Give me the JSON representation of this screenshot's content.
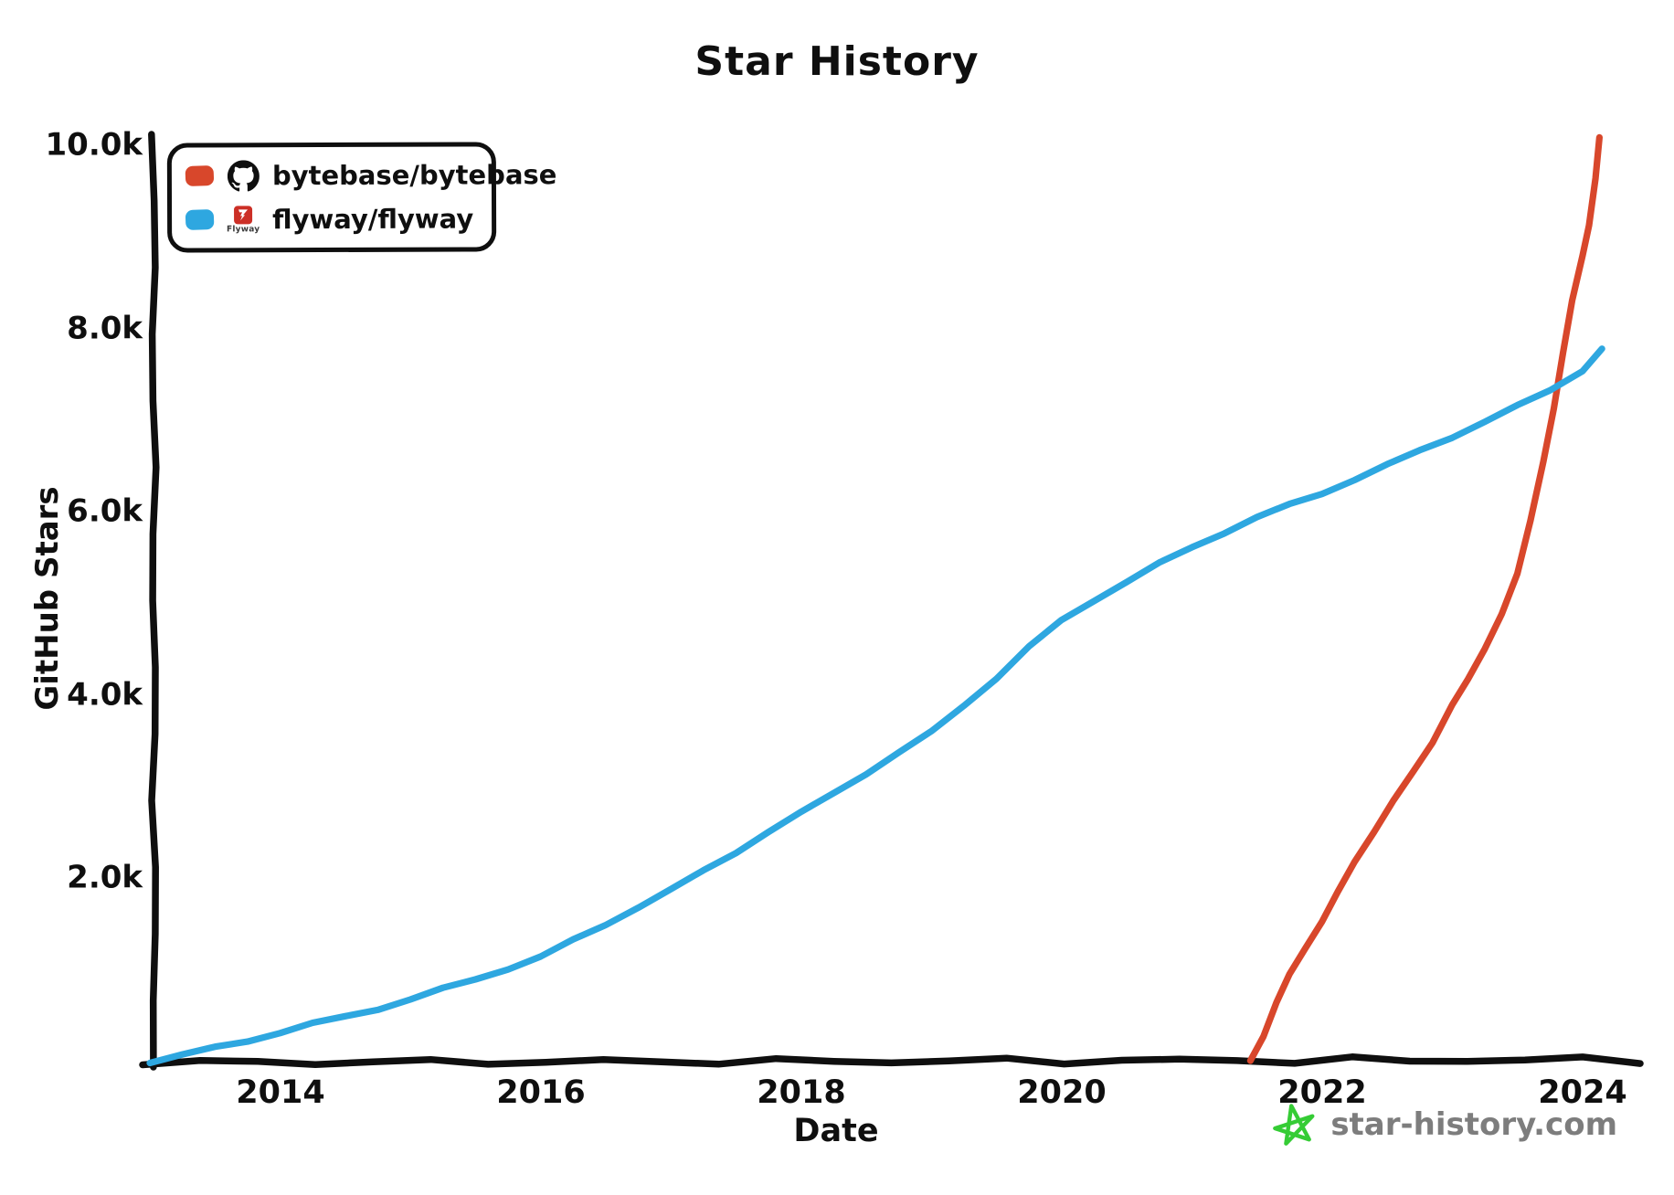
{
  "chart_data": {
    "type": "line",
    "title": "Star History",
    "xlabel": "Date",
    "ylabel": "GitHub Stars",
    "grid": false,
    "legend_position": "top-left",
    "xlim": [
      2013.0,
      2024.45
    ],
    "ylim": [
      0,
      10000
    ],
    "x_ticks": [
      2014,
      2016,
      2018,
      2020,
      2022,
      2024
    ],
    "x_tick_labels": [
      "2014",
      "2016",
      "2018",
      "2020",
      "2022",
      "2024"
    ],
    "y_ticks": [
      2000,
      4000,
      6000,
      8000,
      10000
    ],
    "y_tick_labels": [
      "2.0k",
      "4.0k",
      "6.0k",
      "8.0k",
      "10.0k"
    ],
    "axis_color": "#0f0f0f",
    "series": [
      {
        "name": "bytebase/bytebase",
        "color": "#d8472b",
        "icon": "github-octocat-icon",
        "points": [
          [
            2021.45,
            20
          ],
          [
            2021.55,
            300
          ],
          [
            2021.65,
            650
          ],
          [
            2021.75,
            950
          ],
          [
            2021.87,
            1250
          ],
          [
            2022.0,
            1550
          ],
          [
            2022.12,
            1850
          ],
          [
            2022.25,
            2180
          ],
          [
            2022.4,
            2530
          ],
          [
            2022.55,
            2870
          ],
          [
            2022.7,
            3160
          ],
          [
            2022.85,
            3490
          ],
          [
            2023.0,
            3920
          ],
          [
            2023.12,
            4180
          ],
          [
            2023.25,
            4500
          ],
          [
            2023.38,
            4900
          ],
          [
            2023.5,
            5350
          ],
          [
            2023.6,
            5900
          ],
          [
            2023.7,
            6550
          ],
          [
            2023.78,
            7150
          ],
          [
            2023.85,
            7750
          ],
          [
            2023.92,
            8300
          ],
          [
            2024.0,
            8800
          ],
          [
            2024.05,
            9150
          ],
          [
            2024.1,
            9650
          ],
          [
            2024.13,
            10080
          ]
        ]
      },
      {
        "name": "flyway/flyway",
        "color": "#2ea7e0",
        "icon": "flyway-logo-icon",
        "points": [
          [
            2013.0,
            10
          ],
          [
            2013.25,
            80
          ],
          [
            2013.5,
            160
          ],
          [
            2013.75,
            240
          ],
          [
            2014.0,
            330
          ],
          [
            2014.25,
            420
          ],
          [
            2014.5,
            500
          ],
          [
            2014.75,
            590
          ],
          [
            2015.0,
            690
          ],
          [
            2015.25,
            800
          ],
          [
            2015.5,
            910
          ],
          [
            2015.75,
            1030
          ],
          [
            2016.0,
            1150
          ],
          [
            2016.25,
            1330
          ],
          [
            2016.5,
            1510
          ],
          [
            2016.75,
            1700
          ],
          [
            2017.0,
            1880
          ],
          [
            2017.25,
            2090
          ],
          [
            2017.5,
            2300
          ],
          [
            2017.75,
            2520
          ],
          [
            2018.0,
            2720
          ],
          [
            2018.25,
            2940
          ],
          [
            2018.5,
            3160
          ],
          [
            2018.75,
            3380
          ],
          [
            2019.0,
            3600
          ],
          [
            2019.25,
            3900
          ],
          [
            2019.5,
            4200
          ],
          [
            2019.75,
            4530
          ],
          [
            2020.0,
            4820
          ],
          [
            2020.25,
            5050
          ],
          [
            2020.5,
            5250
          ],
          [
            2020.75,
            5440
          ],
          [
            2021.0,
            5620
          ],
          [
            2021.25,
            5790
          ],
          [
            2021.5,
            5950
          ],
          [
            2021.75,
            6080
          ],
          [
            2022.0,
            6210
          ],
          [
            2022.25,
            6370
          ],
          [
            2022.5,
            6520
          ],
          [
            2022.75,
            6670
          ],
          [
            2023.0,
            6830
          ],
          [
            2023.25,
            7000
          ],
          [
            2023.5,
            7160
          ],
          [
            2023.75,
            7330
          ],
          [
            2024.0,
            7560
          ],
          [
            2024.15,
            7790
          ]
        ]
      }
    ]
  },
  "legend": {
    "flyway_wordmark": "Flyway"
  },
  "footer": {
    "brand": "star-history.com",
    "brand_color": "#7d7d7d",
    "star_color": "#35cc35"
  }
}
